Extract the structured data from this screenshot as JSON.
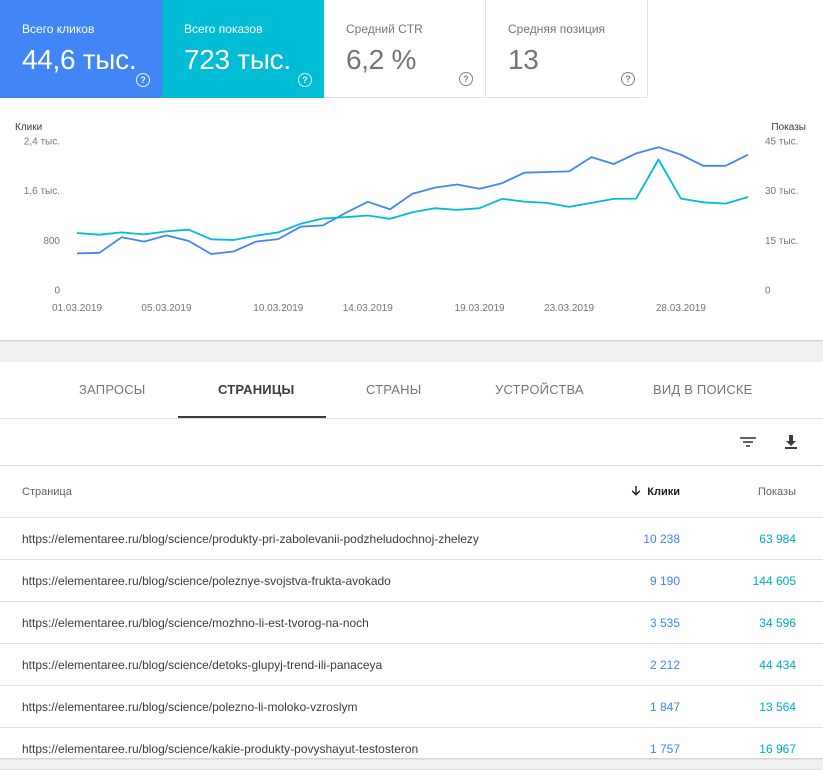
{
  "cards": [
    {
      "label": "Всего кликов",
      "value": "44,6 тыс.",
      "help": "?",
      "color": "#4285f4"
    },
    {
      "label": "Всего показов",
      "value": "723 тыс.",
      "help": "?",
      "color": "#00bcd4"
    },
    {
      "label": "Средний CTR",
      "value": "6,2 %",
      "help": "?"
    },
    {
      "label": "Средняя позиция",
      "value": "13",
      "help": "?"
    }
  ],
  "chart_data": {
    "type": "line",
    "left_axis_label": "Клики",
    "right_axis_label": "Показы",
    "left_ticks": [
      {
        "v": 0,
        "label": "0"
      },
      {
        "v": 800,
        "label": "800"
      },
      {
        "v": 1600,
        "label": "1,6 тыс."
      },
      {
        "v": 2400,
        "label": "2,4 тыс."
      }
    ],
    "right_ticks": [
      {
        "v": 0,
        "label": "0"
      },
      {
        "v": 15000,
        "label": "15 тыс."
      },
      {
        "v": 30000,
        "label": "30 тыс."
      },
      {
        "v": 45000,
        "label": "45 тыс."
      }
    ],
    "x_ticks": [
      {
        "i": 0,
        "label": "01.03.2019"
      },
      {
        "i": 4,
        "label": "05.03.2019"
      },
      {
        "i": 9,
        "label": "10.03.2019"
      },
      {
        "i": 13,
        "label": "14.03.2019"
      },
      {
        "i": 18,
        "label": "19.03.2019"
      },
      {
        "i": 22,
        "label": "23.03.2019"
      },
      {
        "i": 27,
        "label": "28.03.2019"
      }
    ],
    "x": [
      "01.03.2019",
      "02.03.2019",
      "03.03.2019",
      "04.03.2019",
      "05.03.2019",
      "06.03.2019",
      "07.03.2019",
      "08.03.2019",
      "09.03.2019",
      "10.03.2019",
      "11.03.2019",
      "12.03.2019",
      "13.03.2019",
      "14.03.2019",
      "15.03.2019",
      "16.03.2019",
      "17.03.2019",
      "18.03.2019",
      "19.03.2019",
      "20.03.2019",
      "21.03.2019",
      "22.03.2019",
      "23.03.2019",
      "24.03.2019",
      "25.03.2019",
      "26.03.2019",
      "27.03.2019",
      "28.03.2019",
      "29.03.2019",
      "30.03.2019",
      "31.03.2019"
    ],
    "series": [
      {
        "name": "Клики",
        "axis": "left",
        "color": "#4285f4",
        "values": [
          590,
          600,
          850,
          780,
          880,
          790,
          580,
          620,
          780,
          820,
          1020,
          1040,
          1240,
          1420,
          1300,
          1550,
          1650,
          1700,
          1630,
          1720,
          1890,
          1900,
          1910,
          2140,
          2030,
          2200,
          2300,
          2180,
          2000,
          2000,
          2180
        ]
      },
      {
        "name": "Показы",
        "axis": "right",
        "color": "#00bcd4",
        "values": [
          17200,
          16700,
          17400,
          16800,
          17700,
          18200,
          15300,
          15100,
          16400,
          17400,
          20000,
          21600,
          22000,
          22500,
          21500,
          23500,
          24700,
          24200,
          24700,
          27500,
          26700,
          26300,
          25100,
          26300,
          27500,
          27600,
          39400,
          27600,
          26500,
          26100,
          28100
        ]
      }
    ],
    "ylim_left": [
      0,
      2400
    ],
    "ylim_right": [
      0,
      45000
    ],
    "grid": false
  },
  "tabs": [
    {
      "label": "Запросы"
    },
    {
      "label": "Страницы",
      "active": true
    },
    {
      "label": "Страны"
    },
    {
      "label": "Устройства"
    },
    {
      "label": "Вид в поиске"
    }
  ],
  "toolbar": {
    "filter_icon": "filter-icon",
    "download_icon": "download-icon"
  },
  "table": {
    "headers": {
      "page": "Страница",
      "clicks": "Клики",
      "impressions": "Показы",
      "sort_icon": "arrow-down-icon"
    },
    "rows": [
      {
        "url": "https://elementaree.ru/blog/science/produkty-pri-zabolevanii-podzheludochnoj-zhelezy",
        "clicks": "10 238",
        "impressions": "63 984"
      },
      {
        "url": "https://elementaree.ru/blog/science/poleznye-svojstva-frukta-avokado",
        "clicks": "9 190",
        "impressions": "144 605"
      },
      {
        "url": "https://elementaree.ru/blog/science/mozhno-li-est-tvorog-na-noch",
        "clicks": "3 535",
        "impressions": "34 596"
      },
      {
        "url": "https://elementaree.ru/blog/science/detoks-glupyj-trend-ili-panaceya",
        "clicks": "2 212",
        "impressions": "44 434"
      },
      {
        "url": "https://elementaree.ru/blog/science/polezno-li-moloko-vzroslym",
        "clicks": "1 847",
        "impressions": "13 564"
      },
      {
        "url": "https://elementaree.ru/blog/science/kakie-produkty-povyshayut-testosteron",
        "clicks": "1 757",
        "impressions": "16 967"
      }
    ]
  }
}
